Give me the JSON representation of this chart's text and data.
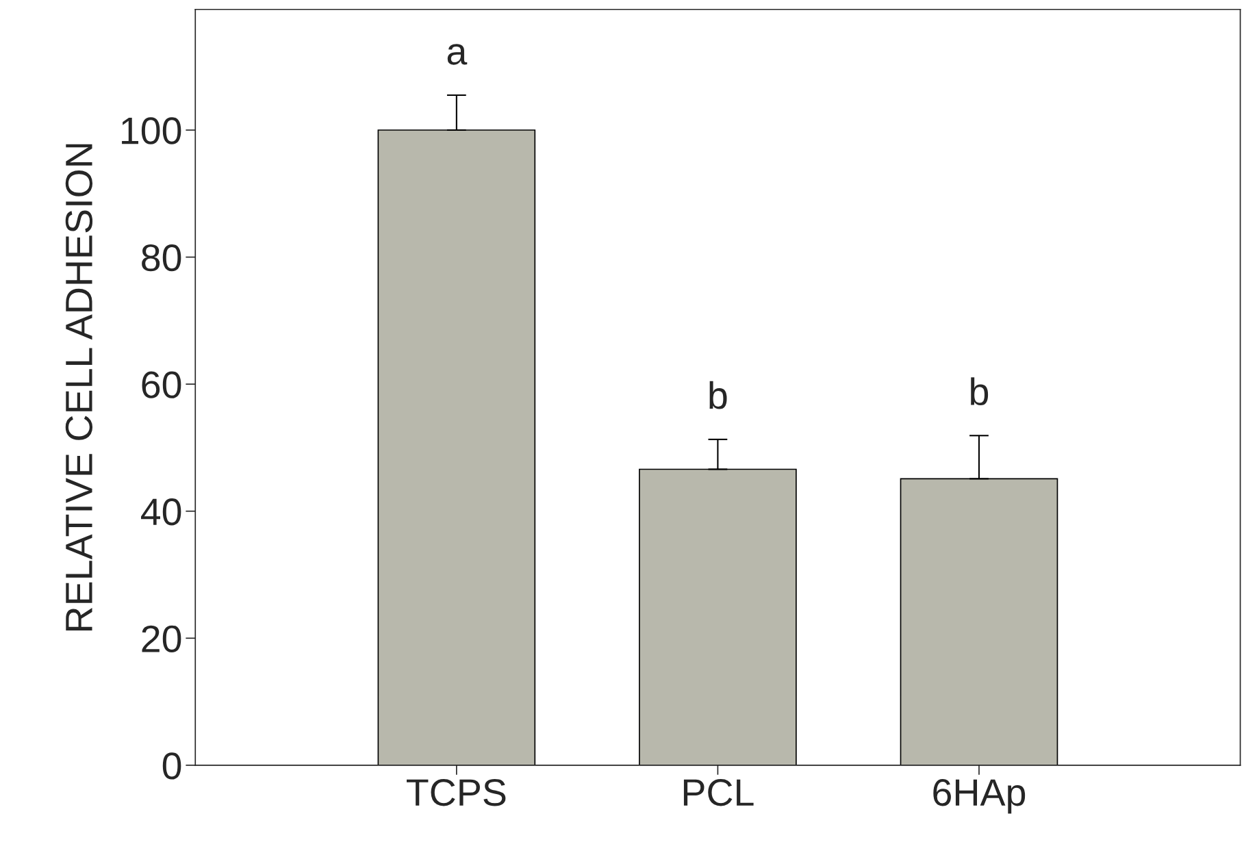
{
  "chart_data": {
    "type": "bar",
    "ylabel": "RELATIVE CELL ADHESION",
    "categories": [
      "TCPS",
      "PCL",
      "6HAp"
    ],
    "values": [
      100,
      46.6,
      45.1
    ],
    "errors": [
      [
        100,
        105.5
      ],
      [
        46.6,
        51.3
      ],
      [
        45.1,
        51.9
      ]
    ],
    "color": "#b8b8ac",
    "ylim": [
      0,
      119
    ],
    "yticks": [
      0,
      20,
      40,
      60,
      80,
      100
    ],
    "grid": false,
    "annotations": [
      "a",
      "b",
      "b"
    ]
  }
}
